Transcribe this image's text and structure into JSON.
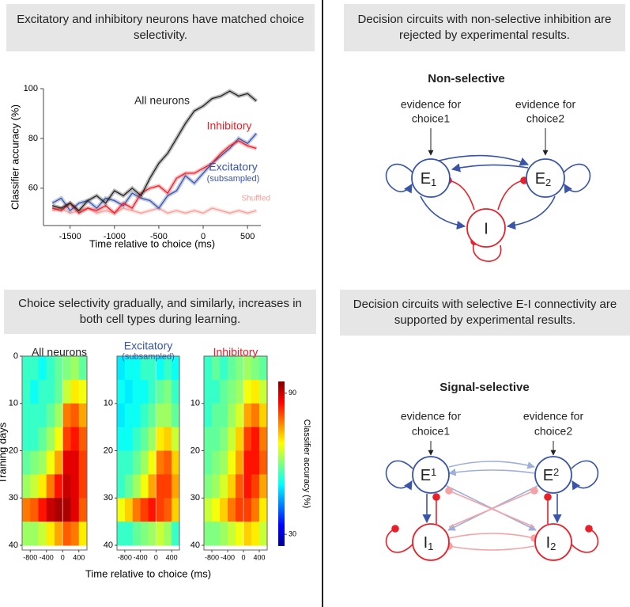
{
  "headers": [
    "Excitatory and inhibitory neurons have matched choice selectivity.",
    "Decision circuits with non-selective inhibition are rejected by experimental results.",
    "Choice selectivity gradually, and similarly, increases in both cell types during learning.",
    "Decision circuits with selective E-I connectivity are supported by experimental results."
  ],
  "chart_data": [
    {
      "type": "line",
      "xlabel": "Time relative to choice (ms)",
      "ylabel": "Classifier accuracy (%)",
      "x": [
        -1700,
        -1600,
        -1500,
        -1400,
        -1300,
        -1200,
        -1100,
        -1000,
        -900,
        -800,
        -700,
        -600,
        -500,
        -400,
        -300,
        -200,
        -100,
        0,
        100,
        200,
        300,
        400,
        500,
        600
      ],
      "xlim": [
        -1800,
        650
      ],
      "ylim": [
        45,
        100
      ],
      "xticks": [
        -1500,
        -1000,
        -500,
        0,
        500
      ],
      "yticks": [
        60,
        80,
        100
      ],
      "series": [
        {
          "name": "All neurons",
          "color": "#222222",
          "values": [
            53,
            52,
            54,
            51,
            55,
            57,
            54,
            59,
            57,
            60,
            57,
            64,
            70,
            74,
            80,
            86,
            91,
            93,
            96,
            97,
            99,
            97,
            98,
            95
          ]
        },
        {
          "name": "Inhibitory",
          "color": "#e8202a",
          "values": [
            52,
            51,
            54,
            50,
            52,
            51,
            53,
            50,
            54,
            52,
            58,
            60,
            61,
            58,
            64,
            66,
            66,
            68,
            70,
            74,
            77,
            79,
            77,
            76
          ]
        },
        {
          "name": "Excitatory",
          "name_note": "(subsampled)",
          "color": "#3a55a8",
          "values": [
            54,
            56,
            51,
            54,
            55,
            52,
            56,
            55,
            53,
            58,
            56,
            55,
            52,
            57,
            59,
            65,
            62,
            66,
            70,
            73,
            76,
            80,
            78,
            82
          ]
        },
        {
          "name": "Shuffled",
          "color": "#f4a09a",
          "values": [
            51,
            52,
            50,
            51,
            52,
            50,
            51,
            50,
            52,
            51,
            50,
            51,
            52,
            50,
            51,
            50,
            51,
            50,
            52,
            51,
            50,
            51,
            50,
            51
          ]
        }
      ]
    },
    {
      "type": "heatmap",
      "title": "All neurons",
      "ylabel": "Training days",
      "x": [
        -900,
        -700,
        -500,
        -300,
        -100,
        100,
        300,
        500
      ],
      "y": [
        2.5,
        7.5,
        12.5,
        17.5,
        22.5,
        27.5,
        32.5,
        37.5
      ],
      "xlim": [
        -1000,
        600
      ],
      "ylim": [
        0,
        41
      ],
      "xticks": [
        -800,
        -400,
        0,
        400
      ],
      "yticks": [
        0,
        10,
        20,
        30,
        40
      ],
      "clim": [
        25,
        95
      ],
      "values": [
        [
          55,
          55,
          52,
          55,
          58,
          60,
          62,
          58
        ],
        [
          55,
          52,
          55,
          55,
          58,
          65,
          70,
          68
        ],
        [
          55,
          55,
          55,
          58,
          62,
          78,
          80,
          75
        ],
        [
          55,
          55,
          58,
          62,
          68,
          82,
          85,
          80
        ],
        [
          58,
          60,
          62,
          68,
          75,
          88,
          88,
          82
        ],
        [
          62,
          65,
          70,
          78,
          85,
          90,
          88,
          82
        ],
        [
          78,
          80,
          85,
          90,
          92,
          92,
          88,
          80
        ],
        [
          62,
          62,
          65,
          70,
          75,
          80,
          78,
          70
        ]
      ]
    },
    {
      "type": "heatmap",
      "title": "Excitatory",
      "title_note": "(subsampled)",
      "xlabel": "Time relative to choice (ms)",
      "x": [
        -900,
        -700,
        -500,
        -300,
        -100,
        100,
        300,
        500
      ],
      "y": [
        2.5,
        7.5,
        12.5,
        17.5,
        22.5,
        27.5,
        32.5,
        37.5
      ],
      "xlim": [
        -1000,
        600
      ],
      "ylim": [
        0,
        41
      ],
      "xticks": [
        -800,
        -400,
        0,
        400
      ],
      "yticks": [
        10,
        20,
        30,
        40
      ],
      "clim": [
        25,
        95
      ],
      "values": [
        [
          50,
          52,
          52,
          55,
          55,
          52,
          55,
          52
        ],
        [
          52,
          50,
          52,
          52,
          55,
          58,
          60,
          55
        ],
        [
          50,
          52,
          52,
          55,
          58,
          62,
          62,
          58
        ],
        [
          52,
          52,
          55,
          58,
          62,
          70,
          72,
          65
        ],
        [
          55,
          55,
          58,
          62,
          68,
          78,
          80,
          72
        ],
        [
          55,
          58,
          62,
          68,
          75,
          82,
          82,
          75
        ],
        [
          68,
          72,
          78,
          82,
          85,
          82,
          80,
          72
        ],
        [
          55,
          55,
          58,
          60,
          62,
          65,
          62,
          55
        ]
      ]
    },
    {
      "type": "heatmap",
      "title": "Inhibitory",
      "colorbar_label": "Classifier accuracy (%)",
      "cticks": [
        30,
        90
      ],
      "x": [
        -900,
        -700,
        -500,
        -300,
        -100,
        100,
        300,
        500
      ],
      "y": [
        2.5,
        7.5,
        12.5,
        17.5,
        22.5,
        27.5,
        32.5,
        37.5
      ],
      "xlim": [
        -1000,
        600
      ],
      "ylim": [
        0,
        41
      ],
      "xticks": [
        -800,
        -400,
        0,
        400
      ],
      "yticks": [
        10,
        20,
        30,
        40
      ],
      "clim": [
        25,
        95
      ],
      "values": [
        [
          55,
          58,
          55,
          58,
          60,
          62,
          60,
          58
        ],
        [
          55,
          55,
          58,
          60,
          62,
          68,
          70,
          65
        ],
        [
          55,
          58,
          58,
          62,
          66,
          75,
          78,
          72
        ],
        [
          58,
          58,
          60,
          65,
          72,
          82,
          85,
          78
        ],
        [
          58,
          60,
          62,
          68,
          75,
          85,
          85,
          80
        ],
        [
          60,
          62,
          66,
          72,
          80,
          85,
          82,
          75
        ],
        [
          65,
          68,
          72,
          78,
          82,
          82,
          78,
          70
        ],
        [
          60,
          60,
          62,
          65,
          68,
          72,
          70,
          65
        ]
      ]
    }
  ],
  "diagrams": [
    {
      "title": "Non-selective",
      "inputs": [
        [
          "evidence for",
          "choice1"
        ],
        [
          "evidence for",
          "choice2"
        ]
      ],
      "nodes": [
        {
          "label": "E",
          "subscript": "1"
        },
        {
          "label": "E",
          "subscript": "2"
        },
        {
          "label": "I"
        }
      ]
    },
    {
      "title": "Signal-selective",
      "inputs": [
        [
          "evidence for",
          "choice1"
        ],
        [
          "evidence for",
          "choice2"
        ]
      ],
      "nodes": [
        {
          "label": "E",
          "subscript": "1"
        },
        {
          "label": "E",
          "subscript": "2"
        },
        {
          "label": "I",
          "subscript": "1"
        },
        {
          "label": "I",
          "subscript": "2"
        }
      ]
    }
  ]
}
